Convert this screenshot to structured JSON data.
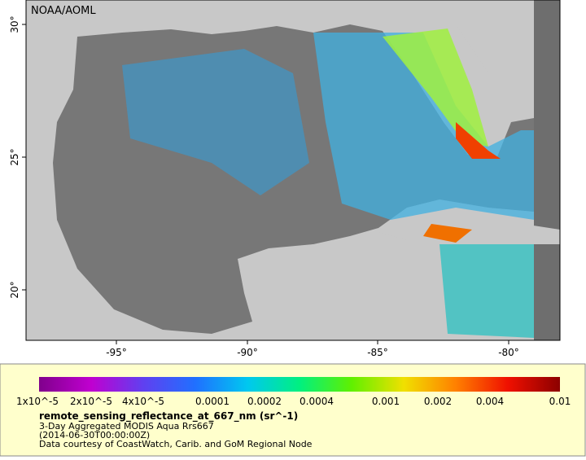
{
  "map": {
    "credit": "NOAA/AOML",
    "lat_labels": [
      "30°",
      "25°",
      "20°"
    ],
    "lon_labels": [
      "-95°",
      "-90°",
      "-85°",
      "-80°"
    ]
  },
  "colorbar": {
    "labels": [
      "1x10^-5",
      "2x10^-5",
      "4x10^-5",
      "0.0001",
      "0.0002",
      "0.0004",
      "0.001",
      "0.002",
      "0.004",
      "0.01"
    ]
  },
  "caption": {
    "variable": "remote_sensing_reflectance_at_667_nm (sr^-1)",
    "product": "3-Day Aggregated MODIS Aqua Rrs667",
    "time": "(2014-06-30T00:00:00Z)",
    "source": "Data courtesy of CoastWatch, Carib. and GoM Regional Node"
  }
}
